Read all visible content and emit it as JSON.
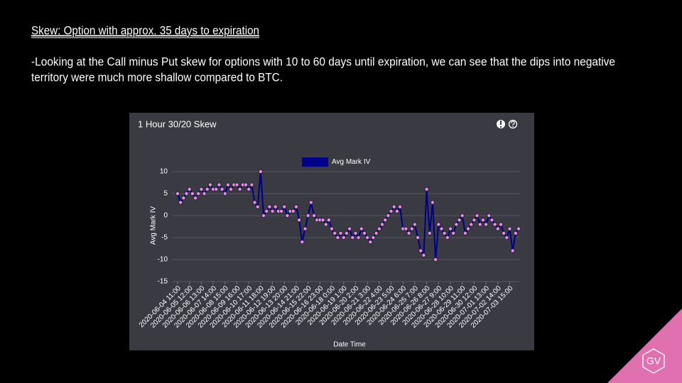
{
  "slide": {
    "heading": "Skew: Option with approx. 35 days to expiration",
    "body_lines": [
      "-Looking at the Call minus Put skew for options with 10 to 60 days until expiration, we can see that the dips into negative",
      "territory were much more shallow compared to BTC."
    ],
    "logo": "GV"
  },
  "chart_data": {
    "type": "line",
    "title": "1 Hour 30/20 Skew",
    "xlabel": "Date Time",
    "ylabel": "Avg Mark IV",
    "categories": [
      "2020-06-04 11:00",
      null,
      null,
      null,
      "2020-06-05 12:00",
      null,
      null,
      null,
      "2020-06-06 13:00",
      null,
      null,
      null,
      "2020-06-07 14:00",
      null,
      null,
      null,
      "2020-06-08 15:00",
      null,
      null,
      null,
      "2020-06-09 16:00",
      null,
      null,
      null,
      "2020-06-10 17:00",
      null,
      null,
      null,
      "2020-06-11 18:00",
      null,
      null,
      null,
      "2020-06-12 19:00",
      null,
      null,
      null,
      "2020-06-13 20:00",
      null,
      null,
      null,
      "2020-06-14 21:00",
      null,
      null,
      null,
      "2020-06-15 22:00",
      null,
      null,
      null,
      "2020-06-16 23:00",
      null,
      null,
      null,
      "2020-06-18 0:00",
      null,
      null,
      null,
      "2020-06-19 1:00",
      null,
      null,
      null,
      "2020-06-20 2:00",
      null,
      null,
      null,
      "2020-06-21 3:00",
      null,
      null,
      null,
      "2020-06-22 4:00",
      null,
      null,
      null,
      "2020-06-23 5:00",
      null,
      null,
      null,
      "2020-06-24 6:00",
      null,
      null,
      null,
      "2020-06-25 7:00",
      null,
      null,
      null,
      "2020-06-26 8:00",
      null,
      null,
      null,
      "2020-06-27 9:00",
      null,
      null,
      null,
      "2020-06-28 10:00",
      null,
      null,
      null,
      "2020-06-29 11:00",
      null,
      null,
      null,
      "2020-06-30 12:00",
      null,
      null,
      null,
      "2020-07-01 13:00",
      null,
      null,
      null,
      "2020-07-02 14:00",
      null,
      null,
      null,
      "2020-07-03 15:00",
      null,
      null,
      null
    ],
    "series": [
      {
        "name": "Avg Mark IV",
        "color": "#00008b",
        "marker_color": "#e98ce9",
        "values": [
          5,
          3,
          4,
          5,
          6,
          5,
          4,
          5,
          6,
          5,
          6,
          7,
          6,
          6,
          7,
          6,
          5,
          7,
          6,
          7,
          7,
          6,
          7,
          7,
          6,
          7,
          3,
          2,
          10,
          0,
          1,
          2,
          1,
          2,
          1,
          1,
          2,
          0,
          1,
          1,
          2,
          -1,
          -6,
          -3,
          0,
          3,
          0,
          -1,
          -1,
          -1,
          -2,
          -1,
          -3,
          -4,
          -5,
          -4,
          -5,
          -4,
          -3,
          -5,
          -4,
          -5,
          -3,
          -4,
          -5,
          -6,
          -5,
          -4,
          -3,
          -2,
          -1,
          0,
          1,
          2,
          1,
          2,
          -3,
          -3,
          -4,
          -3,
          -2,
          -5,
          -8,
          -9,
          6,
          -4,
          3,
          -10,
          -2,
          -3,
          -4,
          -5,
          -3,
          -4,
          -2,
          -1,
          0,
          -4,
          -3,
          -2,
          -1,
          0,
          -2,
          -1,
          -2,
          0,
          -1,
          -2,
          -3,
          -2,
          -4,
          -5,
          -3,
          -8,
          -4,
          -3
        ]
      }
    ],
    "ylim": [
      -15,
      10
    ],
    "yticks": [
      -15,
      -10,
      -5,
      0,
      5,
      10
    ],
    "grid": true,
    "legend": "top"
  }
}
